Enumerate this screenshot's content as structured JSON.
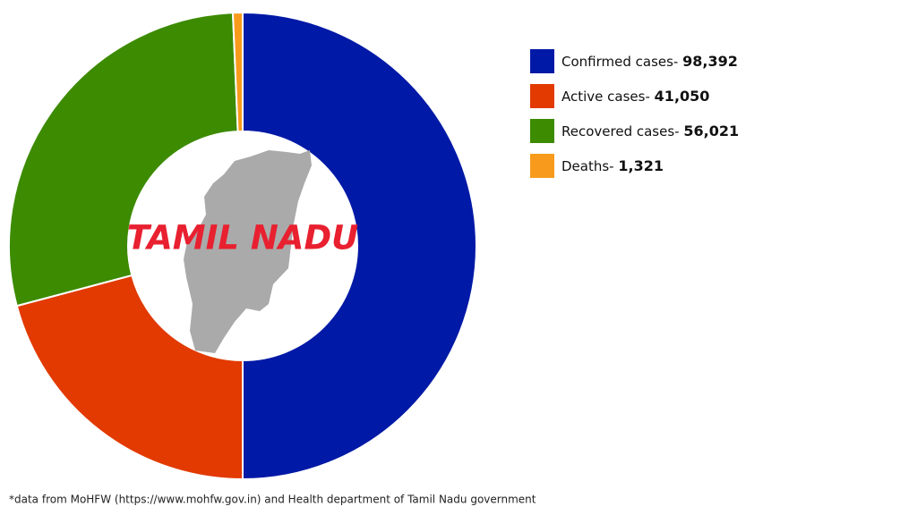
{
  "chart_data": {
    "type": "pie",
    "donut": true,
    "annotation": "TAMIL NADU",
    "categories": [
      "Confirmed cases-",
      "Active cases-",
      "Recovered cases-",
      "Deaths-"
    ],
    "values": [
      98392,
      41050,
      56021,
      1321
    ],
    "value_labels": [
      "98,392",
      "41,050",
      "56,021",
      "1,321"
    ],
    "colors": [
      "#0019a6",
      "#e23a00",
      "#3c8b00",
      "#f89b1c"
    ],
    "legend": "right",
    "footnote": "*data from MoHFW (https://www.mohfw.gov.in) and Health department of Tamil Nadu government"
  }
}
